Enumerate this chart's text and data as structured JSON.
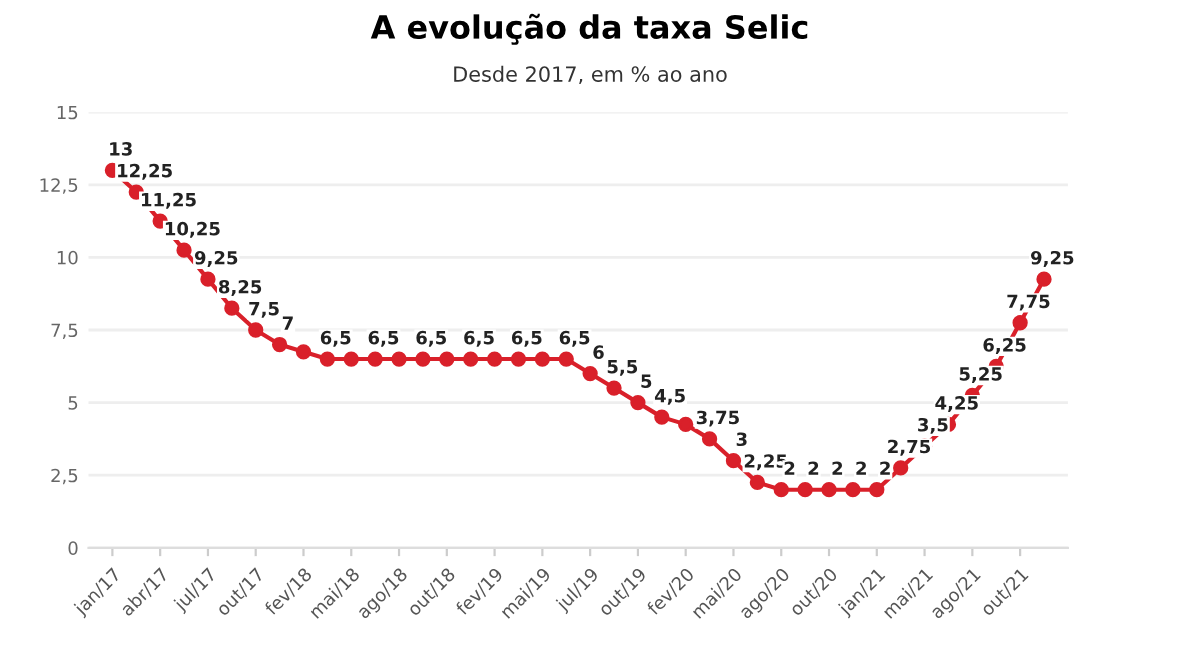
{
  "chart_data": {
    "type": "line",
    "title": "A evolução da taxa Selic",
    "subtitle": "Desde 2017, em % ao ano",
    "categories": [
      "jan/17",
      null,
      "abr/17",
      null,
      "jul/17",
      null,
      "out/17",
      null,
      "fev/18",
      null,
      "mai/18",
      null,
      "ago/18",
      null,
      "out/18",
      null,
      "fev/19",
      null,
      "mai/19",
      null,
      "jul/19",
      null,
      "out/19",
      null,
      "fev/20",
      null,
      "mai/20",
      null,
      "ago/20",
      null,
      "out/20",
      null,
      "jan/21",
      null,
      "mai/21",
      null,
      "ago/21",
      null,
      "out/21",
      null
    ],
    "series": [
      {
        "color": "#d9202a",
        "values": [
          13,
          12.25,
          11.25,
          10.25,
          9.25,
          8.25,
          7.5,
          7,
          6.75,
          6.5,
          6.5,
          6.5,
          6.5,
          6.5,
          6.5,
          6.5,
          6.5,
          6.5,
          6.5,
          6.5,
          6,
          5.5,
          5,
          4.5,
          4.25,
          3.75,
          3,
          2.25,
          2,
          2,
          2,
          2,
          2,
          2.75,
          3.5,
          4.25,
          5.25,
          6.25,
          7.75,
          9.25
        ],
        "value_labels": [
          "13",
          "12,25",
          "11,25",
          "10,25",
          "9,25",
          "8,25",
          "7,5",
          "7",
          null,
          "6,5",
          null,
          "6,5",
          null,
          "6,5",
          null,
          "6,5",
          null,
          "6,5",
          null,
          "6,5",
          "6",
          "5,5",
          "5",
          "4,5",
          null,
          "3,75",
          "3",
          "2,25",
          "2",
          "2",
          "2",
          "2",
          "2",
          "2,75",
          "3,5",
          "4,25",
          "5,25",
          "6,25",
          "7,75",
          "9,25"
        ]
      }
    ],
    "ylim": [
      0,
      15
    ],
    "yticks": [
      0,
      {
        "value": 2.5,
        "label": "2,5"
      },
      5,
      {
        "value": 7.5,
        "label": "7,5"
      },
      10,
      {
        "value": 12.5,
        "label": "12,5"
      },
      15
    ],
    "grid": "y",
    "marker": "circle",
    "line_style": "solid",
    "legend": false
  }
}
